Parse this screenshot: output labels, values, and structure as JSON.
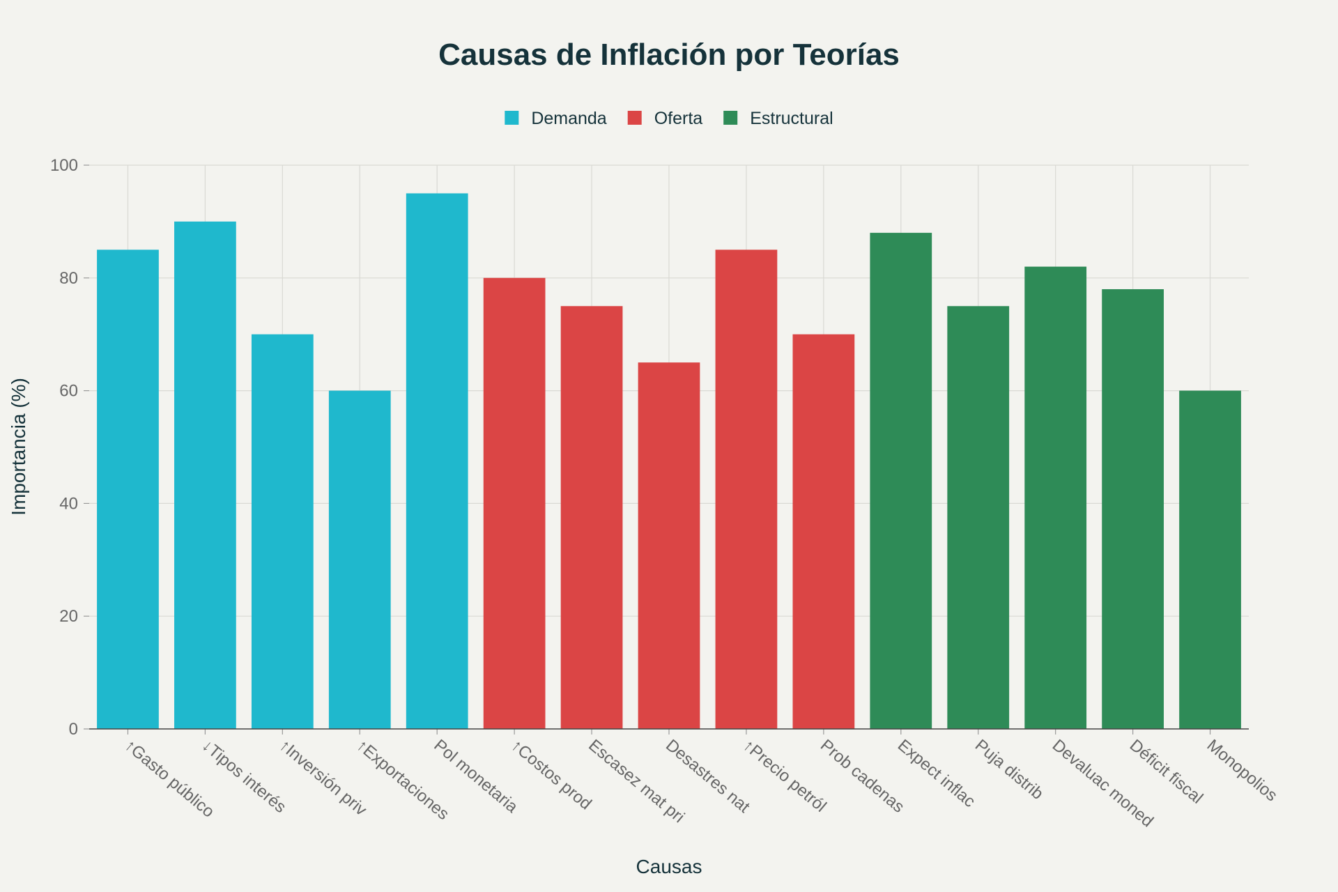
{
  "chart_data": {
    "type": "bar",
    "title": "Causas de Inflación por Teorías",
    "xlabel": "Causas",
    "ylabel": "Importancia (%)",
    "ylim": [
      0,
      100
    ],
    "yticks": [
      0,
      20,
      40,
      60,
      80,
      100
    ],
    "grid": true,
    "legend_position": "top-center",
    "groups": [
      {
        "name": "Demanda",
        "color": "#1fb8cd"
      },
      {
        "name": "Oferta",
        "color": "#db4545"
      },
      {
        "name": "Estructural",
        "color": "#2e8b57"
      }
    ],
    "categories": [
      "↑Gasto público",
      "↓Tipos interés",
      "↑Inversión priv",
      "↑Exportaciones",
      "Pol monetaria",
      "↑Costos prod",
      "Escasez mat pri",
      "Desastres nat",
      "↑Precio petról",
      "Prob cadenas",
      "Expect inflac",
      "Puja distrib",
      "Devaluac moned",
      "Déficit fiscal",
      "Monopolios"
    ],
    "values": [
      85,
      90,
      70,
      60,
      95,
      80,
      75,
      65,
      85,
      70,
      88,
      75,
      82,
      78,
      60
    ],
    "category_group": [
      "Demanda",
      "Demanda",
      "Demanda",
      "Demanda",
      "Demanda",
      "Oferta",
      "Oferta",
      "Oferta",
      "Oferta",
      "Oferta",
      "Estructural",
      "Estructural",
      "Estructural",
      "Estructural",
      "Estructural"
    ]
  }
}
